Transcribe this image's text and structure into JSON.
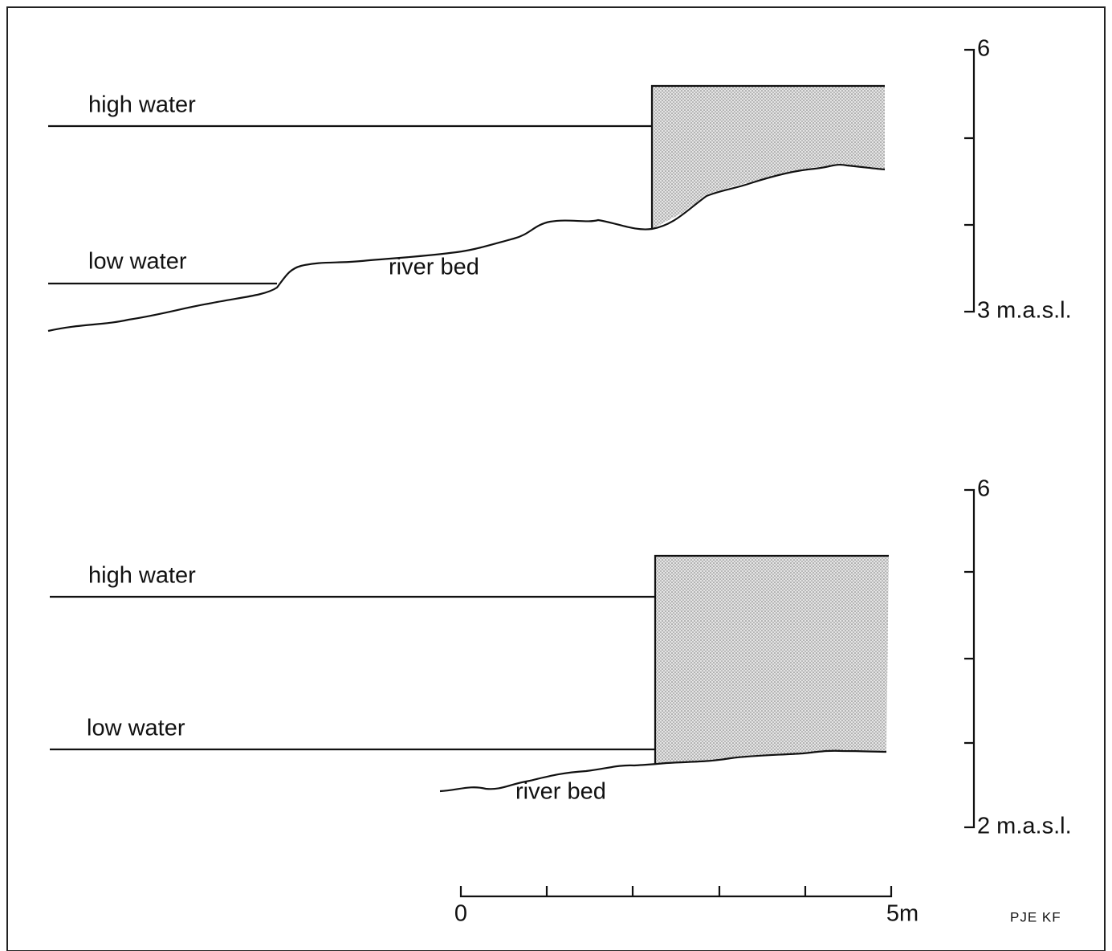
{
  "panels": [
    {
      "high_water_label": "high water",
      "low_water_label": "low water",
      "river_bed_label": "river bed",
      "scale_top_label": "6",
      "scale_bottom_label": "3 m.a.s.l."
    },
    {
      "high_water_label": "high water",
      "low_water_label": "low water",
      "river_bed_label": "river bed",
      "scale_top_label": "6",
      "scale_bottom_label": "2 m.a.s.l."
    }
  ],
  "scale_bar": {
    "start_label": "0",
    "end_label": "5m"
  },
  "credit": "PJE KF"
}
